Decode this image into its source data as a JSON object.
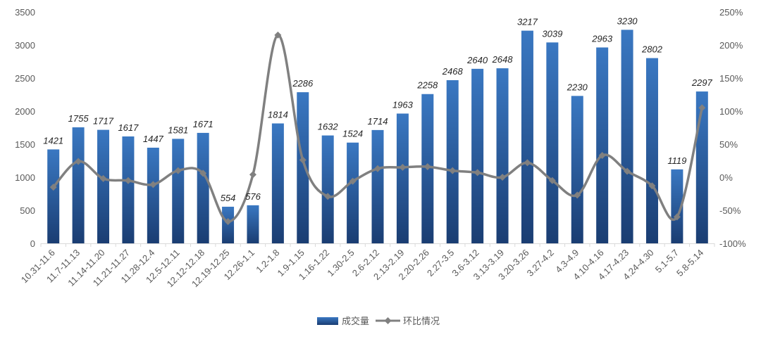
{
  "chart_data": {
    "type": "bar",
    "categories": [
      "10.31-11.6",
      "11.7-11.13",
      "11.14-11.20",
      "11.21-11.27",
      "11.28-12.4",
      "12.5-12.11",
      "12.12-12.18",
      "12.19-12.25",
      "12.26-1.1",
      "1.2-1.8",
      "1.9-1.15",
      "1.16-1.22",
      "1.30-2.5",
      "2.6-2.12",
      "2.13-2.19",
      "2.20-2.26",
      "2.27-3.5",
      "3.6-3.12",
      "3.13-3.19",
      "3.20-3.26",
      "3.27-4.2",
      "4.3-4.9",
      "4.10-4.16",
      "4.17-4.23",
      "4.24-4.30",
      "5.1-5.7",
      "5.8-5.14"
    ],
    "series": [
      {
        "name": "成交量",
        "type": "bar",
        "axis": "left",
        "color": "#2e66ad",
        "values": [
          1421,
          1755,
          1717,
          1617,
          1447,
          1581,
          1671,
          554,
          576,
          1814,
          2286,
          1632,
          1524,
          1714,
          1963,
          2258,
          2468,
          2640,
          2648,
          3217,
          3039,
          2230,
          2963,
          3230,
          2802,
          1119,
          2297
        ]
      },
      {
        "name": "环比情况",
        "type": "line",
        "axis": "right",
        "color": "#808080",
        "unit": "%",
        "values": [
          -15,
          24,
          -2,
          -5,
          -11,
          10,
          6,
          -67,
          4,
          215,
          26,
          -29,
          -6,
          13,
          15,
          16,
          10,
          7,
          0,
          22,
          -5,
          -27,
          33,
          9,
          -13,
          -60,
          105
        ]
      }
    ],
    "y_left": {
      "min": 0,
      "max": 3500,
      "step": 500,
      "ticks": [
        "0",
        "500",
        "1000",
        "1500",
        "2000",
        "2500",
        "3000",
        "3500"
      ]
    },
    "y_right": {
      "min": -100,
      "max": 250,
      "step": 50,
      "ticks": [
        "-100%",
        "-50%",
        "0%",
        "50%",
        "100%",
        "150%",
        "200%",
        "250%"
      ]
    },
    "data_labels": [
      "1421",
      "1755",
      "1717",
      "1617",
      "1447",
      "1581",
      "1671",
      "554",
      "576",
      "1814",
      "2286",
      "1632",
      "1524",
      "1714",
      "1963",
      "2258",
      "2468",
      "2640",
      "2648",
      "3217",
      "3039",
      "2230",
      "2963",
      "3230",
      "2802",
      "1119",
      "2297"
    ],
    "legend_position": "bottom",
    "grid": false
  }
}
